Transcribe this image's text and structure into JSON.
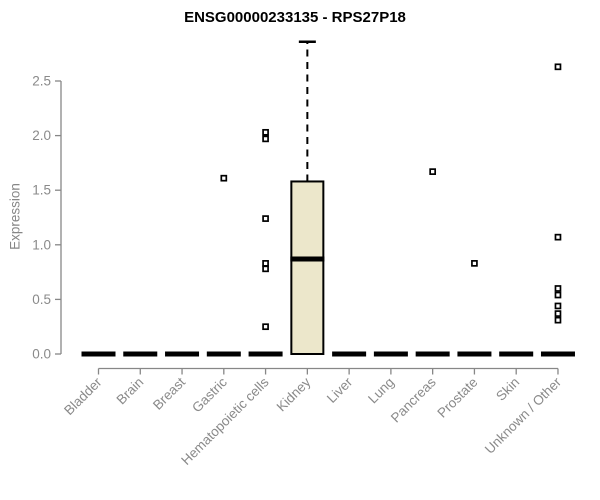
{
  "header": {
    "title": "ENSG00000233135 - RPS27P18"
  },
  "chart_data": {
    "type": "boxplot",
    "title": "ENSG00000233135 - RPS27P18",
    "xlabel": "",
    "ylabel": "Expression",
    "ylim": [
      0,
      2.86
    ],
    "y_ticks": [
      0.0,
      0.5,
      1.0,
      1.5,
      2.0,
      2.5
    ],
    "y_tick_labels": [
      "0.0",
      "0.5",
      "1.0",
      "1.5",
      "2.0",
      "2.5"
    ],
    "grid": false,
    "legend": "none",
    "categories": [
      "Bladder",
      "Brain",
      "Breast",
      "Gastric",
      "Hematopoietic cells",
      "Kidney",
      "Liver",
      "Lung",
      "Pancreas",
      "Prostate",
      "Skin",
      "Unknown / Other"
    ],
    "boxes": [
      {
        "category": "Bladder",
        "whisker_low": 0,
        "q1": 0,
        "median": 0,
        "q3": 0,
        "whisker_high": 0,
        "outliers": []
      },
      {
        "category": "Brain",
        "whisker_low": 0,
        "q1": 0,
        "median": 0,
        "q3": 0,
        "whisker_high": 0,
        "outliers": []
      },
      {
        "category": "Breast",
        "whisker_low": 0,
        "q1": 0,
        "median": 0,
        "q3": 0,
        "whisker_high": 0,
        "outliers": []
      },
      {
        "category": "Gastric",
        "whisker_low": 0,
        "q1": 0,
        "median": 0,
        "q3": 0,
        "whisker_high": 0,
        "outliers": [
          1.61
        ]
      },
      {
        "category": "Hematopoietic cells",
        "whisker_low": 0,
        "q1": 0,
        "median": 0,
        "q3": 0,
        "whisker_high": 0,
        "outliers": [
          2.03,
          1.97,
          1.24,
          0.83,
          0.78,
          0.25
        ]
      },
      {
        "category": "Kidney",
        "whisker_low": 0,
        "q1": 0,
        "median": 0.87,
        "q3": 1.58,
        "whisker_high": 2.86,
        "outliers": []
      },
      {
        "category": "Liver",
        "whisker_low": 0,
        "q1": 0,
        "median": 0,
        "q3": 0,
        "whisker_high": 0,
        "outliers": []
      },
      {
        "category": "Lung",
        "whisker_low": 0,
        "q1": 0,
        "median": 0,
        "q3": 0,
        "whisker_high": 0,
        "outliers": []
      },
      {
        "category": "Pancreas",
        "whisker_low": 0,
        "q1": 0,
        "median": 0,
        "q3": 0,
        "whisker_high": 0,
        "outliers": [
          1.67
        ]
      },
      {
        "category": "Prostate",
        "whisker_low": 0,
        "q1": 0,
        "median": 0,
        "q3": 0,
        "whisker_high": 0,
        "outliers": [
          0.83
        ]
      },
      {
        "category": "Skin",
        "whisker_low": 0,
        "q1": 0,
        "median": 0,
        "q3": 0,
        "whisker_high": 0,
        "outliers": []
      },
      {
        "category": "Unknown / Other",
        "whisker_low": 0,
        "q1": 0,
        "median": 0,
        "q3": 0,
        "whisker_high": 0,
        "outliers": [
          2.63,
          1.07,
          0.6,
          0.54,
          0.44,
          0.37,
          0.31
        ]
      }
    ],
    "colors": {
      "background": "#ffffff",
      "box_fill": "#ECE7CB",
      "box_stroke": "#000000",
      "median": "#000000",
      "whisker": "#000000",
      "outlier_stroke": "#000000",
      "axis_line": "#878787",
      "tick_text": "#8a8a8a",
      "title_text": "#000000"
    }
  }
}
